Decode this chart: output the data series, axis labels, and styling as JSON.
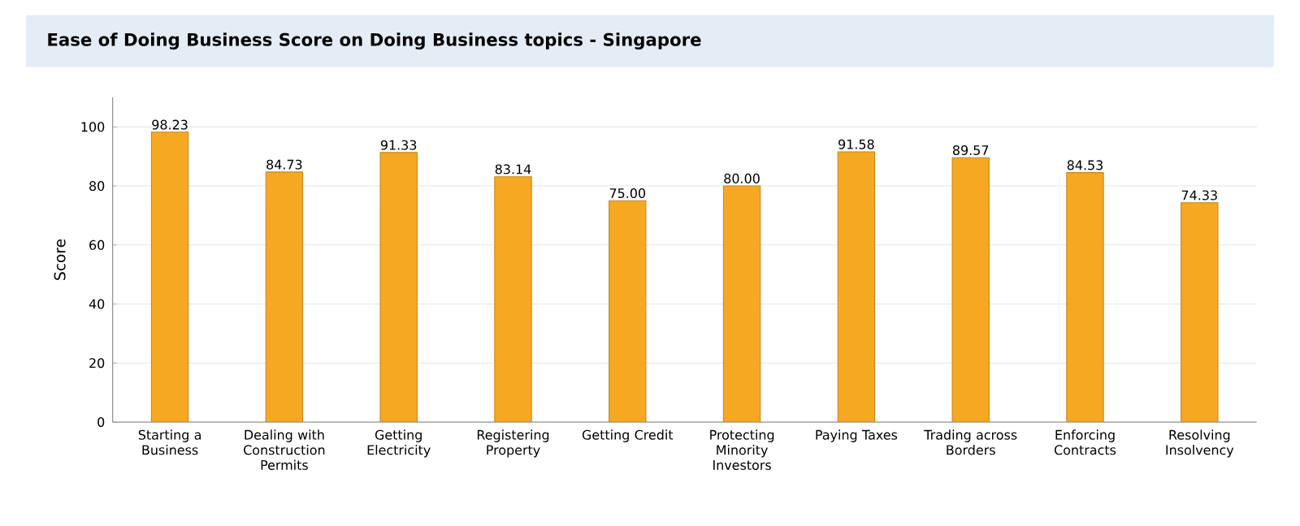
{
  "chart_data": {
    "type": "bar",
    "title": "Ease of Doing Business Score on Doing Business topics - Singapore",
    "ylabel": "Score",
    "categories": [
      "Starting a Business",
      "Dealing with Construction Permits",
      "Getting Electricity",
      "Registering Property",
      "Getting Credit",
      "Protecting Minority Investors",
      "Paying Taxes",
      "Trading across Borders",
      "Enforcing Contracts",
      "Resolving Insolvency"
    ],
    "values": [
      98.23,
      84.73,
      91.33,
      83.14,
      75.0,
      80.0,
      91.58,
      89.57,
      84.53,
      74.33
    ],
    "value_labels": [
      "98.23",
      "84.73",
      "91.33",
      "83.14",
      "75.00",
      "80.00",
      "91.58",
      "89.57",
      "84.53",
      "74.33"
    ],
    "color": "#f7a823",
    "ylim": [
      0,
      110
    ],
    "yticks": [
      0,
      20,
      40,
      60,
      80,
      100
    ],
    "grid": "y"
  }
}
